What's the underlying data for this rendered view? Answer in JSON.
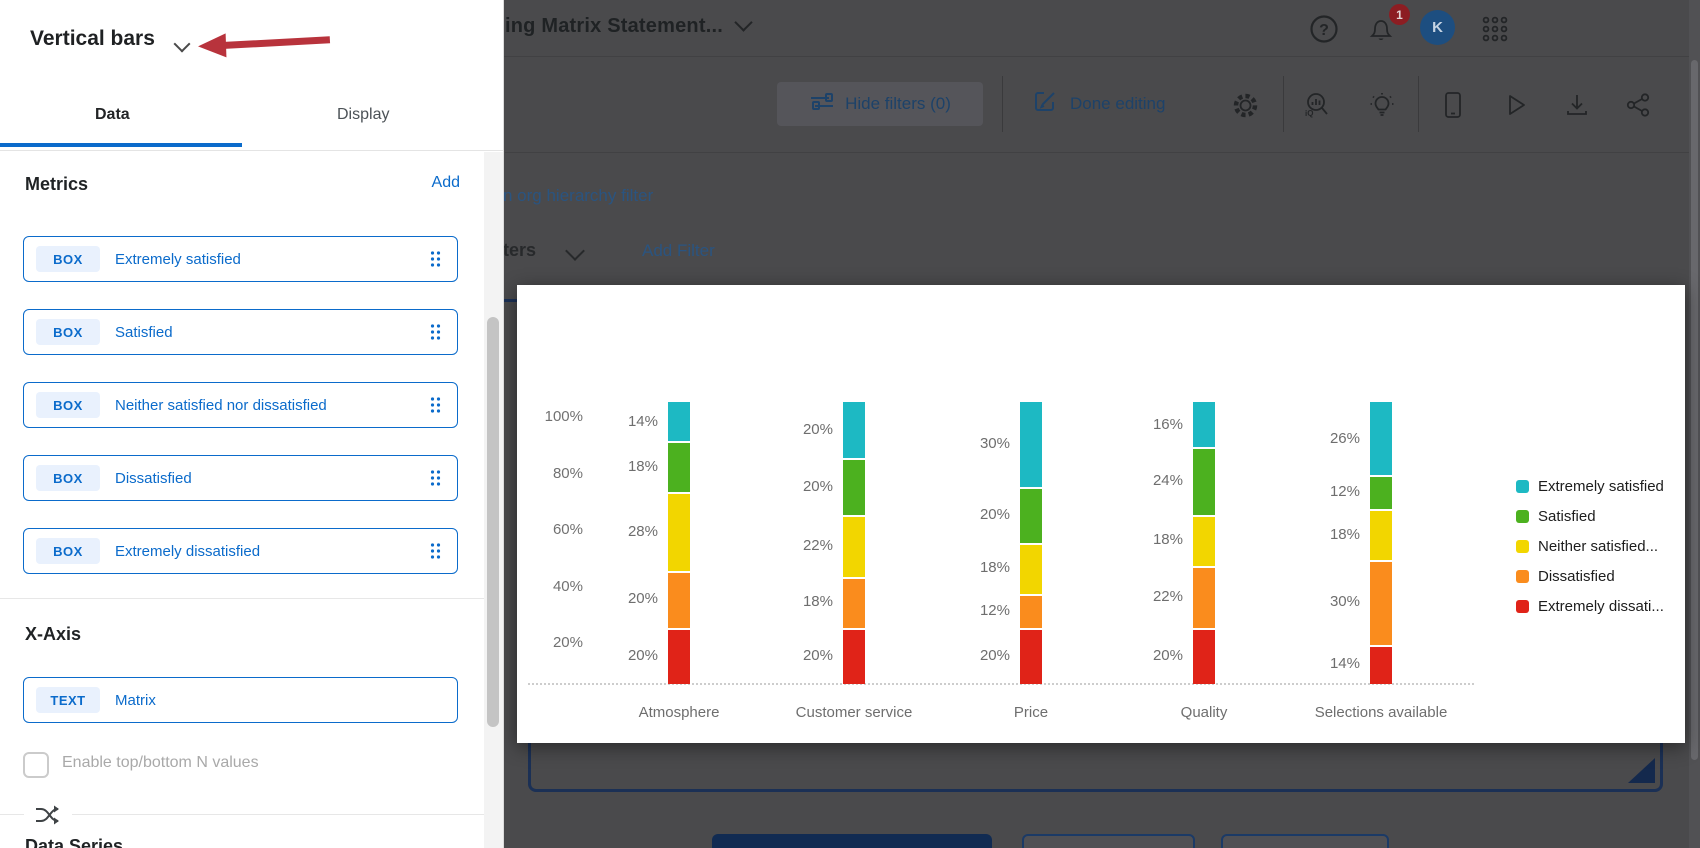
{
  "panel": {
    "title": "Vertical bars",
    "tabs": {
      "data": "Data",
      "display": "Display"
    },
    "metrics": {
      "heading": "Metrics",
      "add": "Add",
      "items": [
        {
          "badge": "BOX",
          "label": "Extremely satisfied"
        },
        {
          "badge": "BOX",
          "label": "Satisfied"
        },
        {
          "badge": "BOX",
          "label": "Neither satisfied nor dissatisfied"
        },
        {
          "badge": "BOX",
          "label": "Dissatisfied"
        },
        {
          "badge": "BOX",
          "label": "Extremely dissatisfied"
        }
      ]
    },
    "xaxis": {
      "heading": "X-Axis",
      "field": {
        "badge": "TEXT",
        "label": "Matrix"
      },
      "checkbox_label": "Enable top/bottom N values",
      "checkbox_checked": false
    },
    "data_series_heading": "Data Series"
  },
  "topbar": {
    "title": "ing Matrix Statement...",
    "notification_count": "1",
    "avatar_initial": "K",
    "help_glyph": "?"
  },
  "toolbar": {
    "hide_filters": "Hide filters (0)",
    "done_editing": "Done editing"
  },
  "filter_bar": {
    "org_hierarchy_link": "n org hierarchy filter",
    "filters_label": "ters",
    "add_filter": "Add Filter"
  },
  "chart_data": {
    "type": "bar",
    "stacked": true,
    "unit": "percent",
    "title": "",
    "categories": [
      "Atmosphere",
      "Customer service",
      "Price",
      "Quality",
      "Selections available"
    ],
    "series": [
      {
        "name": "Extremely satisfied",
        "color": "#1db9c3",
        "values": [
          14,
          20,
          30,
          16,
          26
        ]
      },
      {
        "name": "Satisfied",
        "color": "#4cb11f",
        "values": [
          18,
          20,
          20,
          24,
          12
        ]
      },
      {
        "name": "Neither satisfied nor dissatisfied",
        "color": "#f2d600",
        "values": [
          28,
          22,
          18,
          18,
          18
        ]
      },
      {
        "name": "Dissatisfied",
        "color": "#fa8c1d",
        "values": [
          20,
          18,
          12,
          22,
          30
        ]
      },
      {
        "name": "Extremely dissatisfied",
        "color": "#e02318",
        "values": [
          20,
          20,
          20,
          20,
          14
        ]
      }
    ],
    "legend_labels": [
      "Extremely satisfied",
      "Satisfied",
      "Neither satisfied...",
      "Dissatisfied",
      "Extremely dissati..."
    ],
    "legend_position": "right",
    "y_ticks": [
      "100%",
      "80%",
      "60%",
      "40%",
      "20%"
    ],
    "ylim": [
      0,
      100
    ],
    "grid": false,
    "data_label_format": "{value}%"
  },
  "colors": {
    "accent_blue": "#0b6bcb",
    "dim_background": "#4a4a4c",
    "dim_navy_text": "#1d4269",
    "selection_outline": "#1b3055",
    "arrow_red": "#b8333c",
    "badge_red": "#8c1d22",
    "avatar_blue": "#1d4e80"
  }
}
